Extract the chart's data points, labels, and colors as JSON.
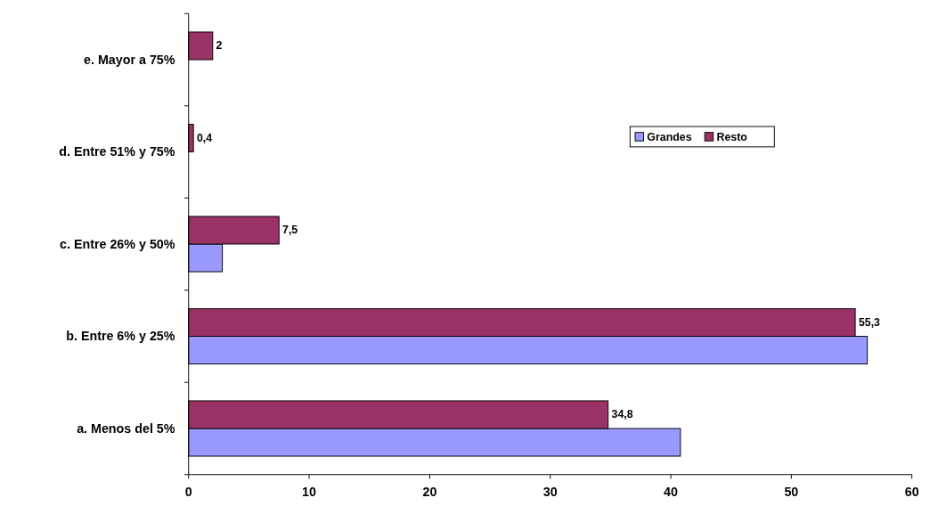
{
  "chart_data": {
    "type": "bar",
    "orientation": "horizontal",
    "categories": [
      "e. Mayor a 75%",
      "d. Entre 51% y 75%",
      "c. Entre 26% y 50%",
      "b. Entre 6% y 25%",
      "a. Menos del 5%"
    ],
    "series": [
      {
        "name": "Grandes",
        "color": "#9999ff",
        "values": [
          null,
          null,
          2.8,
          56.3,
          40.8
        ]
      },
      {
        "name": "Resto",
        "color": "#993366",
        "values": [
          2,
          0.4,
          7.5,
          55.3,
          34.8
        ],
        "value_labels": [
          "2",
          "0,4",
          "7,5",
          "55,3",
          "34,8"
        ]
      }
    ],
    "xlim": [
      0,
      60
    ],
    "xticks": [
      0,
      10,
      20,
      30,
      40,
      50,
      60
    ],
    "grid": false,
    "legend": "top right"
  }
}
